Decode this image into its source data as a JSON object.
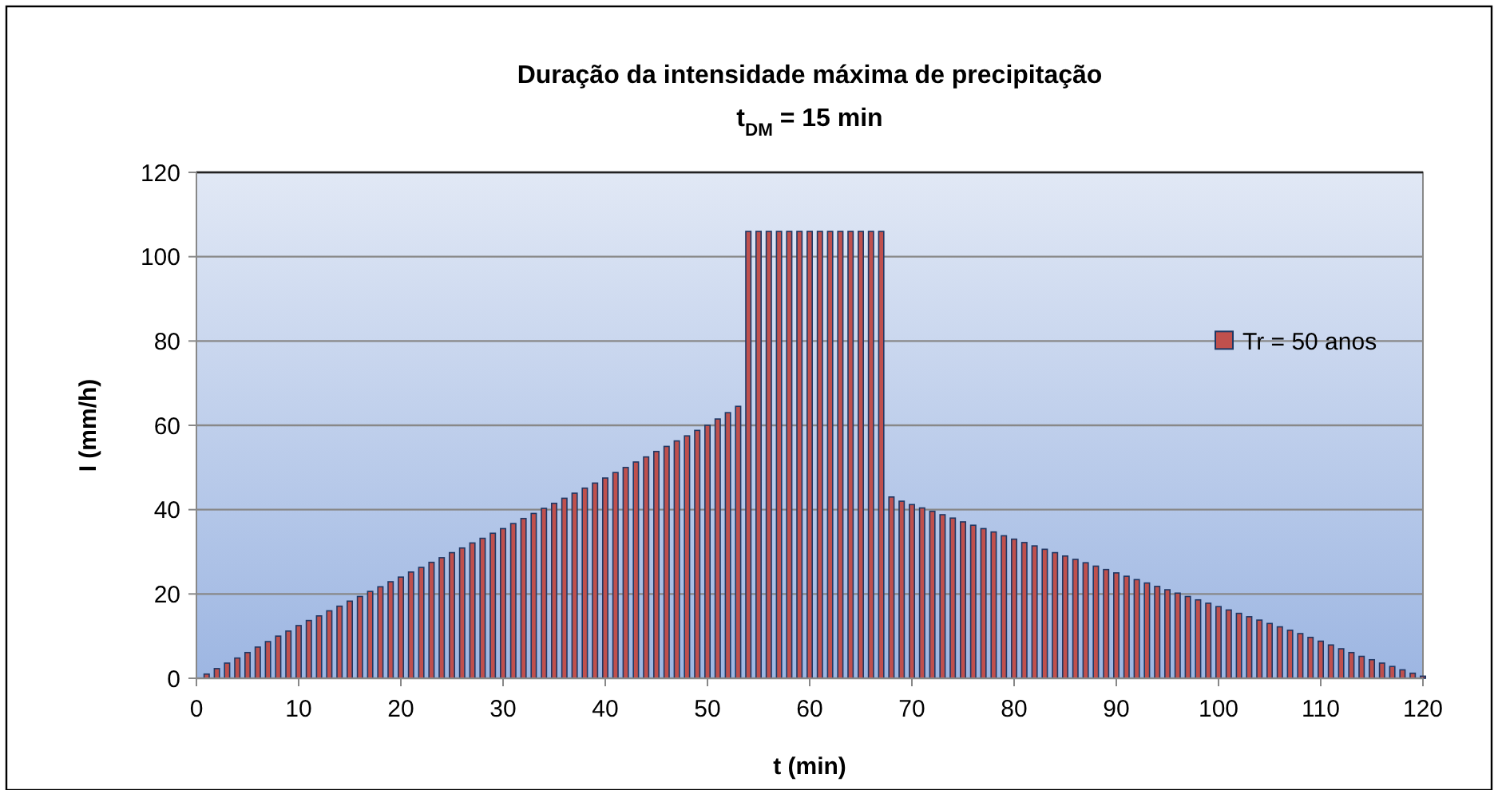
{
  "chart_data": {
    "type": "bar",
    "title": "Duração da intensidade máxima de precipitação",
    "subtitle": "t$_{DM}$ = 15 min",
    "xlabel": "t (min)",
    "ylabel": "I (mm/h)",
    "x": [
      1,
      2,
      3,
      4,
      5,
      6,
      7,
      8,
      9,
      10,
      11,
      12,
      13,
      14,
      15,
      16,
      17,
      18,
      19,
      20,
      21,
      22,
      23,
      24,
      25,
      26,
      27,
      28,
      29,
      30,
      31,
      32,
      33,
      34,
      35,
      36,
      37,
      38,
      39,
      40,
      41,
      42,
      43,
      44,
      45,
      46,
      47,
      48,
      49,
      50,
      51,
      52,
      53,
      54,
      55,
      56,
      57,
      58,
      59,
      60,
      61,
      62,
      63,
      64,
      65,
      66,
      67,
      68,
      69,
      70,
      71,
      72,
      73,
      74,
      75,
      76,
      77,
      78,
      79,
      80,
      81,
      82,
      83,
      84,
      85,
      86,
      87,
      88,
      89,
      90,
      91,
      92,
      93,
      94,
      95,
      96,
      97,
      98,
      99,
      100,
      101,
      102,
      103,
      104,
      105,
      106,
      107,
      108,
      109,
      110,
      111,
      112,
      113,
      114,
      115,
      116,
      117,
      118,
      119,
      120
    ],
    "series": [
      {
        "name": "Tr = 50 anos",
        "color": "#c0504d",
        "values": [
          1,
          2.3,
          3.6,
          4.8,
          6.1,
          7.4,
          8.7,
          10,
          11.2,
          12.5,
          13.7,
          14.8,
          16,
          17.1,
          18.3,
          19.4,
          20.6,
          21.7,
          22.9,
          24,
          25.2,
          26.3,
          27.5,
          28.6,
          29.8,
          30.9,
          32.1,
          33.2,
          34.4,
          35.5,
          36.7,
          37.9,
          39.1,
          40.3,
          41.5,
          42.7,
          43.9,
          45.1,
          46.3,
          47.5,
          48.8,
          50,
          51.3,
          52.5,
          53.8,
          55,
          56.3,
          57.5,
          58.8,
          60,
          61.5,
          63,
          64.5,
          106,
          106,
          106,
          106,
          106,
          106,
          106,
          106,
          106,
          106,
          106,
          106,
          106,
          106,
          43,
          42,
          41.2,
          40.4,
          39.6,
          38.8,
          38,
          37.1,
          36.3,
          35.5,
          34.7,
          33.8,
          33,
          32.2,
          31.4,
          30.6,
          29.8,
          29,
          28.2,
          27.4,
          26.6,
          25.8,
          25,
          24.2,
          23.4,
          22.6,
          21.8,
          21,
          20.2,
          19.4,
          18.6,
          17.8,
          17,
          16.2,
          15.4,
          14.6,
          13.8,
          13,
          12.2,
          11.4,
          10.6,
          9.7,
          8.8,
          7.9,
          7,
          6.1,
          5.2,
          4.4,
          3.6,
          2.8,
          2,
          1.2,
          0.5
        ]
      }
    ],
    "xlim": [
      0,
      120
    ],
    "xticks": [
      0,
      10,
      20,
      30,
      40,
      50,
      60,
      70,
      80,
      90,
      100,
      110,
      120
    ],
    "ylim": [
      0,
      120
    ],
    "yticks": [
      0,
      20,
      40,
      60,
      80,
      100,
      120
    ],
    "grid": "y",
    "legend": "right"
  }
}
